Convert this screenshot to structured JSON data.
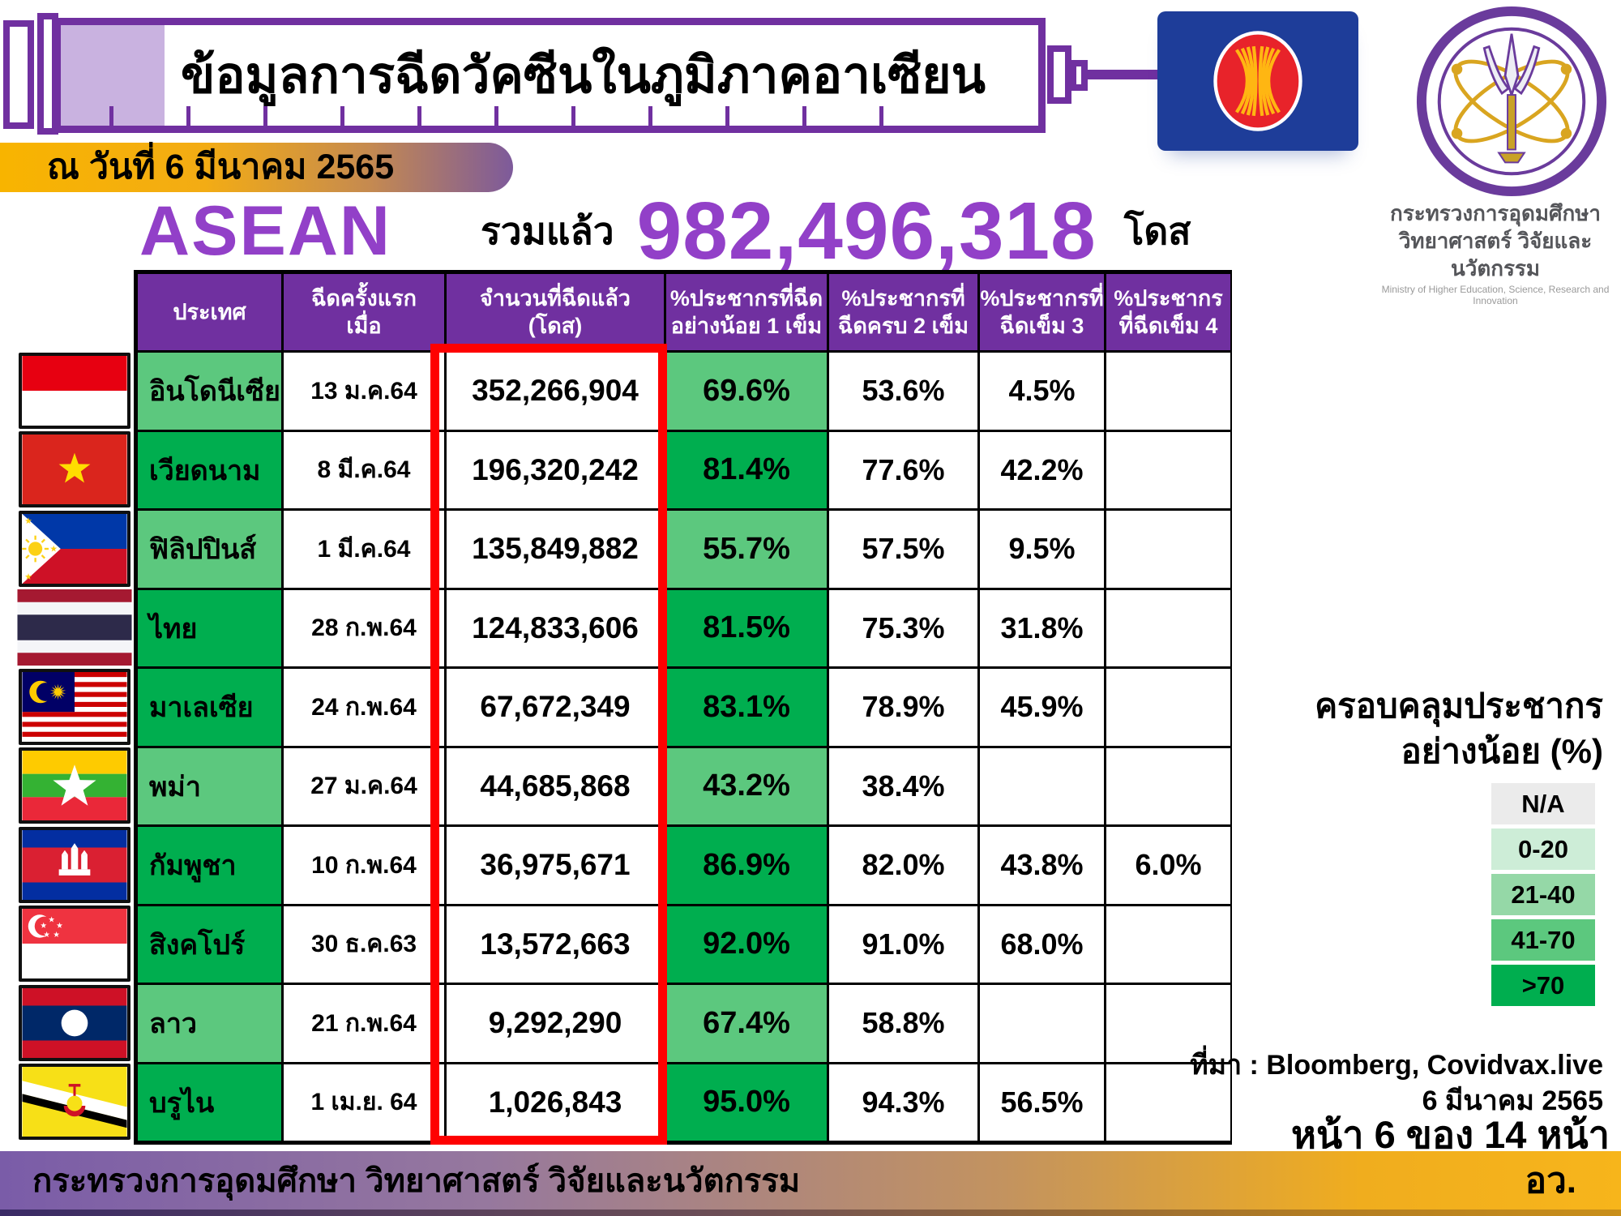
{
  "header": {
    "title": "ข้อมูลการฉีดวัคซีนในภูมิภาคอาเซียน",
    "date_badge": "ณ วันที่ 6 มีนาคม 2565",
    "asean_label": "ASEAN",
    "total_prefix": "รวมแล้ว",
    "total_value": "982,496,318",
    "total_unit": "โดส",
    "asean_flag_icon": "asean-emblem",
    "ministry_logo_icon": "mhesi-seal",
    "ministry_th_1": "กระทรวงการอุดมศึกษา",
    "ministry_th_2": "วิทยาศาสตร์ วิจัยและนวัตกรรม",
    "ministry_en": "Ministry of Higher Education, Science, Research and Innovation"
  },
  "table": {
    "columns": [
      "ประเทศ",
      "ฉีดครั้งแรก\nเมื่อ",
      "จำนวนที่ฉีดแล้ว\n(โดส)",
      "%ประชากรที่ฉีด\nอย่างน้อย 1 เข็ม",
      "%ประชากรที่\nฉีดครบ 2 เข็ม",
      "%ประชากรที่\nฉีดเข็ม 3",
      "%ประชากร\nที่ฉีดเข็ม 4"
    ],
    "rows": [
      {
        "country": "อินโดนีเซีย",
        "flag": "indonesia",
        "first_dose_date": "13 ม.ค.64",
        "doses": "352,266,904",
        "pct_1dose": "69.6%",
        "pct_2dose": "53.6%",
        "pct_3dose": "4.5%",
        "pct_4dose": "",
        "coverage_tier": "41-70"
      },
      {
        "country": "เวียดนาม",
        "flag": "vietnam",
        "first_dose_date": "8 มี.ค.64",
        "doses": "196,320,242",
        "pct_1dose": "81.4%",
        "pct_2dose": "77.6%",
        "pct_3dose": "42.2%",
        "pct_4dose": "",
        "coverage_tier": ">70"
      },
      {
        "country": "ฟิลิปปินส์",
        "flag": "philippines",
        "first_dose_date": "1 มี.ค.64",
        "doses": "135,849,882",
        "pct_1dose": "55.7%",
        "pct_2dose": "57.5%",
        "pct_3dose": "9.5%",
        "pct_4dose": "",
        "coverage_tier": "41-70"
      },
      {
        "country": "ไทย",
        "flag": "thailand",
        "first_dose_date": "28 ก.พ.64",
        "doses": "124,833,606",
        "pct_1dose": "81.5%",
        "pct_2dose": "75.3%",
        "pct_3dose": "31.8%",
        "pct_4dose": "",
        "coverage_tier": ">70"
      },
      {
        "country": "มาเลเซีย",
        "flag": "malaysia",
        "first_dose_date": "24 ก.พ.64",
        "doses": "67,672,349",
        "pct_1dose": "83.1%",
        "pct_2dose": "78.9%",
        "pct_3dose": "45.9%",
        "pct_4dose": "",
        "coverage_tier": ">70"
      },
      {
        "country": "พม่า",
        "flag": "myanmar",
        "first_dose_date": "27 ม.ค.64",
        "doses": "44,685,868",
        "pct_1dose": "43.2%",
        "pct_2dose": "38.4%",
        "pct_3dose": "",
        "pct_4dose": "",
        "coverage_tier": "41-70"
      },
      {
        "country": "กัมพูชา",
        "flag": "cambodia",
        "first_dose_date": "10 ก.พ.64",
        "doses": "36,975,671",
        "pct_1dose": "86.9%",
        "pct_2dose": "82.0%",
        "pct_3dose": "43.8%",
        "pct_4dose": "6.0%",
        "coverage_tier": ">70"
      },
      {
        "country": "สิงคโปร์",
        "flag": "singapore",
        "first_dose_date": "30 ธ.ค.63",
        "doses": "13,572,663",
        "pct_1dose": "92.0%",
        "pct_2dose": "91.0%",
        "pct_3dose": "68.0%",
        "pct_4dose": "",
        "coverage_tier": ">70"
      },
      {
        "country": "ลาว",
        "flag": "laos",
        "first_dose_date": "21 ก.พ.64",
        "doses": "9,292,290",
        "pct_1dose": "67.4%",
        "pct_2dose": "58.8%",
        "pct_3dose": "",
        "pct_4dose": "",
        "coverage_tier": "41-70"
      },
      {
        "country": "บรูไน",
        "flag": "brunei",
        "first_dose_date": "1 เม.ย. 64",
        "doses": "1,026,843",
        "pct_1dose": "95.0%",
        "pct_2dose": "94.3%",
        "pct_3dose": "56.5%",
        "pct_4dose": "",
        "coverage_tier": ">70"
      }
    ],
    "highlight_column": "จำนวนที่ฉีดแล้ว (โดส)",
    "highlight_color": "#FE0101"
  },
  "legend": {
    "title_line1": "ครอบคลุมประชากร",
    "title_line2": "อย่างน้อย (%)",
    "items": [
      {
        "label": "N/A",
        "color": "#EBEBEB"
      },
      {
        "label": "0-20",
        "color": "#CDEDD7"
      },
      {
        "label": "21-40",
        "color": "#95D8A7"
      },
      {
        "label": "41-70",
        "color": "#5CC87E"
      },
      {
        "label": ">70",
        "color": "#00AE4F"
      }
    ]
  },
  "source": {
    "line1": "ที่มา : Bloomberg, Covidvax.live",
    "line2": "6 มีนาคม 2565",
    "page": "หน้า 6 ของ 14 หน้า"
  },
  "footer": {
    "ministry": "กระทรวงการอุดมศึกษา วิทยาศาสตร์ วิจัยและนวัตกรรม",
    "abbr": "อว."
  },
  "colors": {
    "primary_purple": "#7030A0",
    "accent_purple": "#9240C8",
    "badge_gold": "#F8B400",
    "table_header_bg": "#7030A0",
    "tier_dark_green": "#00AE4F",
    "tier_mid_green": "#5CC87E"
  }
}
